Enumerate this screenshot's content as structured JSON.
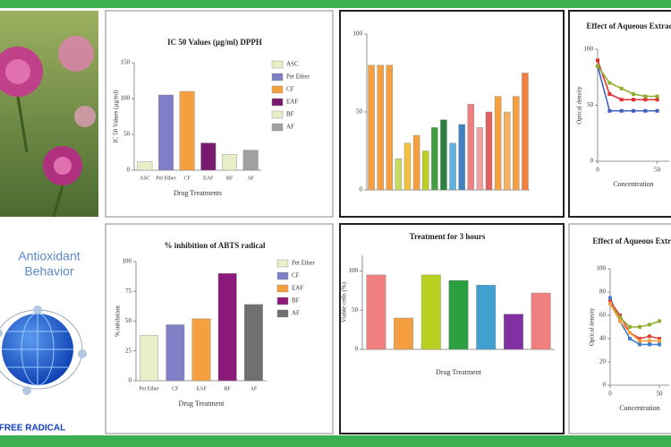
{
  "badge": {
    "title": [
      "Antioxidant",
      "Behavior"
    ],
    "caption": "FREE RADICAL"
  },
  "panels": {
    "dpph": {
      "type": "bar",
      "title": "IC 50 Values (µg/ml) DPPH",
      "ylabel": "IC 50 Values (µg/ml)",
      "xlabel": "Drug Treatments",
      "categories": [
        "ASC",
        "Pet Ether",
        "CF",
        "EAF",
        "BF",
        "AF"
      ],
      "values": [
        12,
        105,
        110,
        38,
        22,
        28
      ],
      "colors": [
        "#e8eec8",
        "#7f7fc8",
        "#f5a040",
        "#7a1a6e",
        "#e8eec8",
        "#a0a0a0"
      ],
      "ylim": [
        0,
        150
      ],
      "yticks": [
        0,
        50,
        100,
        150
      ],
      "legend": true
    },
    "grouped": {
      "type": "bar",
      "values": [
        80,
        80,
        80,
        20,
        30,
        35,
        25,
        40,
        45,
        30,
        42,
        55,
        40,
        50,
        60,
        50,
        60,
        75
      ],
      "colors": [
        "#f5a040",
        "#f5a040",
        "#f5a040",
        "#c8d860",
        "#f0c040",
        "#f5a040",
        "#b8d020",
        "#40a040",
        "#2c8040",
        "#60b0e0",
        "#4080c0",
        "#f08080",
        "#f0a0a0",
        "#e06060",
        "#f5a040",
        "#f5b060",
        "#f5a040",
        "#f08040"
      ],
      "ylim": [
        0,
        100
      ],
      "yticks": [
        0,
        50,
        100
      ]
    },
    "effect_top": {
      "type": "line",
      "title": "Effect of Aqueous Extract",
      "ylabel": "Optical density",
      "xlabel": "Concentration",
      "x": [
        0,
        10,
        20,
        30,
        40,
        50
      ],
      "xlim": [
        0,
        60
      ],
      "xticks": [
        0,
        50
      ],
      "ylim": [
        0,
        100
      ],
      "yticks": [
        0,
        50,
        100
      ],
      "series": [
        {
          "color": "#e03030",
          "values": [
            90,
            60,
            55,
            55,
            55,
            55
          ]
        },
        {
          "color": "#4060c0",
          "values": [
            85,
            45,
            45,
            45,
            45,
            45
          ]
        },
        {
          "color": "#90b030",
          "values": [
            85,
            70,
            65,
            60,
            58,
            58
          ]
        }
      ]
    },
    "abts": {
      "type": "bar",
      "title": "% inhibition of ABTS radical",
      "ylabel": "% inhibition",
      "xlabel": "Drug Treatment",
      "categories": [
        "Pet Ether",
        "CF",
        "EAF",
        "BF",
        "AF"
      ],
      "values": [
        38,
        47,
        52,
        90,
        64
      ],
      "colors": [
        "#e8eec8",
        "#8080c8",
        "#f5a040",
        "#8b1a7a",
        "#707070"
      ],
      "ylim": [
        0,
        100
      ],
      "yticks": [
        0,
        25,
        50,
        75,
        100
      ],
      "legend": true
    },
    "viability": {
      "type": "bar",
      "title": "Treatment for 3 hours",
      "ylabel": "Viable cells (%)",
      "xlabel": "Drug Treatment",
      "values": [
        95,
        40,
        95,
        88,
        82,
        45,
        72
      ],
      "colors": [
        "#f08080",
        "#f5a040",
        "#b8d020",
        "#2ca040",
        "#40a0d0",
        "#8030a0",
        "#f08080"
      ],
      "ylim": [
        0,
        120
      ],
      "yticks": [
        0,
        50,
        100
      ]
    },
    "effect_bottom": {
      "type": "line",
      "title": "Effect of Aqueous Extract",
      "ylabel": "Optical density",
      "xlabel": "Concentration",
      "x": [
        0,
        10,
        20,
        30,
        40,
        50
      ],
      "xlim": [
        0,
        60
      ],
      "xticks": [
        0,
        50
      ],
      "ylim": [
        0,
        100
      ],
      "yticks": [
        0,
        20,
        40,
        60,
        80,
        100
      ],
      "series": [
        {
          "color": "#4080d0",
          "values": [
            75,
            55,
            40,
            35,
            35,
            35
          ]
        },
        {
          "color": "#e04040",
          "values": [
            72,
            60,
            45,
            40,
            42,
            40
          ]
        },
        {
          "color": "#90b030",
          "values": [
            70,
            58,
            50,
            50,
            52,
            55
          ]
        },
        {
          "color": "#f5a040",
          "values": [
            70,
            55,
            45,
            38,
            38,
            38
          ]
        }
      ]
    }
  }
}
